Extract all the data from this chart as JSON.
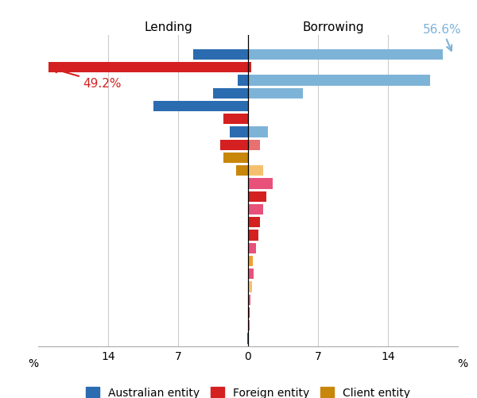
{
  "xlim": [
    -21,
    21
  ],
  "xticks": [
    -14,
    -7,
    0,
    7,
    14
  ],
  "xticklabels": [
    "14",
    "7",
    "0",
    "7",
    "14"
  ],
  "lending_label": "Lending",
  "borrowing_label": "Borrowing",
  "annotation_red": "49.2%",
  "annotation_blue": "56.6%",
  "bars": [
    {
      "y": 22,
      "lending": -5.5,
      "borrowing": 19.5,
      "lend_color": "#2B6CB0",
      "borr_color": "#7EB3D8"
    },
    {
      "y": 21,
      "lending": -20.0,
      "borrowing": 0.3,
      "lend_color": "#D42020",
      "borr_color": "#D42020"
    },
    {
      "y": 20,
      "lending": -1.0,
      "borrowing": 18.2,
      "lend_color": "#2B6CB0",
      "borr_color": "#7EB3D8"
    },
    {
      "y": 19,
      "lending": -3.5,
      "borrowing": 5.5,
      "lend_color": "#2B6CB0",
      "borr_color": "#7EB3D8"
    },
    {
      "y": 18,
      "lending": -9.5,
      "borrowing": 0.0,
      "lend_color": "#2B6CB0",
      "borr_color": "#2B6CB0"
    },
    {
      "y": 17,
      "lending": -2.5,
      "borrowing": 0.0,
      "lend_color": "#D42020",
      "borr_color": "#D42020"
    },
    {
      "y": 16,
      "lending": -1.8,
      "borrowing": 2.0,
      "lend_color": "#2B6CB0",
      "borr_color": "#7EB3D8"
    },
    {
      "y": 15,
      "lending": -2.8,
      "borrowing": 1.2,
      "lend_color": "#D42020",
      "borr_color": "#E87070"
    },
    {
      "y": 14,
      "lending": -2.5,
      "borrowing": 0.0,
      "lend_color": "#C8860A",
      "borr_color": "#C8860A"
    },
    {
      "y": 13,
      "lending": -1.2,
      "borrowing": 1.5,
      "lend_color": "#C8860A",
      "borr_color": "#F5C06E"
    },
    {
      "y": 12,
      "lending": 0.0,
      "borrowing": 2.5,
      "lend_color": "#E8527A",
      "borr_color": "#E8527A"
    },
    {
      "y": 11,
      "lending": 0.0,
      "borrowing": 1.8,
      "lend_color": "#D42020",
      "borr_color": "#D42020"
    },
    {
      "y": 10,
      "lending": 0.0,
      "borrowing": 1.5,
      "lend_color": "#E8527A",
      "borr_color": "#E8527A"
    },
    {
      "y": 9,
      "lending": 0.0,
      "borrowing": 1.2,
      "lend_color": "#D42020",
      "borr_color": "#D42020"
    },
    {
      "y": 8,
      "lending": 0.0,
      "borrowing": 1.0,
      "lend_color": "#D42020",
      "borr_color": "#D42020"
    },
    {
      "y": 7,
      "lending": 0.0,
      "borrowing": 0.8,
      "lend_color": "#E8527A",
      "borr_color": "#E8527A"
    },
    {
      "y": 6,
      "lending": 0.0,
      "borrowing": 0.5,
      "lend_color": "#F0A030",
      "borr_color": "#F0A030"
    },
    {
      "y": 5,
      "lending": 0.0,
      "borrowing": 0.55,
      "lend_color": "#E8527A",
      "borr_color": "#E8527A"
    },
    {
      "y": 4,
      "lending": 0.0,
      "borrowing": 0.38,
      "lend_color": "#F5C06E",
      "borr_color": "#F5C06E"
    },
    {
      "y": 3,
      "lending": 0.0,
      "borrowing": 0.25,
      "lend_color": "#E8527A",
      "borr_color": "#E8527A"
    },
    {
      "y": 2,
      "lending": 0.0,
      "borrowing": 0.18,
      "lend_color": "#D42020",
      "borr_color": "#D42020"
    },
    {
      "y": 1,
      "lending": 0.0,
      "borrowing": 0.12,
      "lend_color": "#E8527A",
      "borr_color": "#E8527A"
    },
    {
      "y": 0,
      "lending": -0.08,
      "borrowing": 0.0,
      "lend_color": "#2B6CB0",
      "borr_color": "#2B6CB0"
    }
  ],
  "legend": [
    {
      "color": "#2B6CB0",
      "label": "Australian entity"
    },
    {
      "color": "#D42020",
      "label": "Foreign entity"
    },
    {
      "color": "#C8860A",
      "label": "Client entity"
    }
  ]
}
